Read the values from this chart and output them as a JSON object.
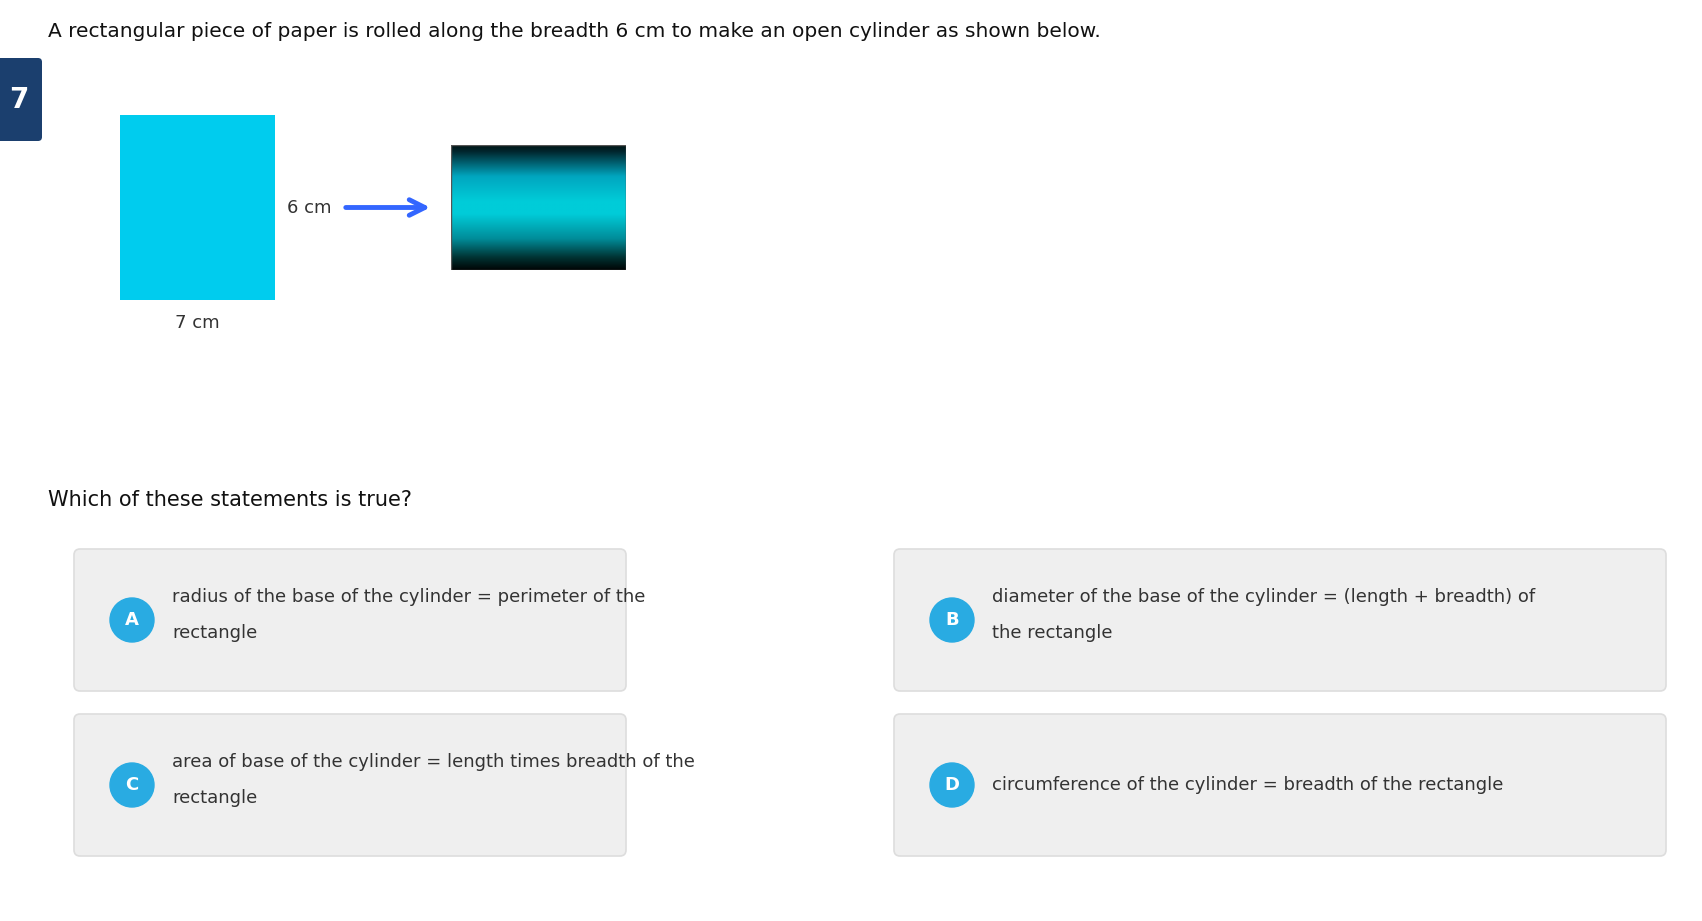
{
  "title_text": "A rectangular piece of paper is rolled along the breadth 6 cm to make an open cylinder as shown below.",
  "question_text": "Which of these statements is true?",
  "question_number": "7",
  "rect_color": "#00CCEE",
  "rect_label_breadth": "6 cm",
  "rect_label_length": "7 cm",
  "arrow_color": "#3366FF",
  "bg_color": "#FFFFFF",
  "option_circle_color": "#29ABE2",
  "option_circle_text_color": "#FFFFFF",
  "badge_color": "#1B3F6E",
  "options": [
    {
      "label": "A",
      "text_line1": "radius of the base of the cylinder = perimeter of the",
      "text_line2": "rectangle",
      "col": 0,
      "row": 0
    },
    {
      "label": "B",
      "text_line1": "diameter of the base of the cylinder = (length + breadth) of",
      "text_line2": "the rectangle",
      "col": 1,
      "row": 0
    },
    {
      "label": "C",
      "text_line1": "area of base of the cylinder = length times breadth of the",
      "text_line2": "rectangle",
      "col": 0,
      "row": 1
    },
    {
      "label": "D",
      "text_line1": "circumference of the cylinder = breadth of the rectangle",
      "text_line2": "",
      "col": 1,
      "row": 1
    }
  ]
}
